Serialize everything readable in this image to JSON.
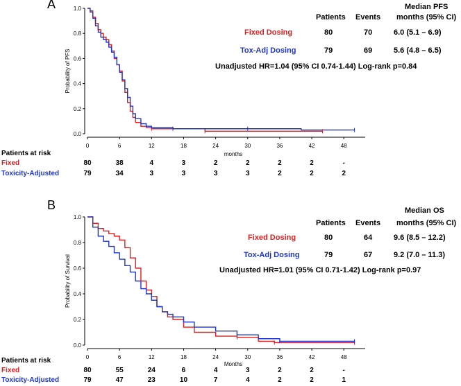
{
  "colors": {
    "fixed": "#e01e1e",
    "tox": "#1f35c8",
    "axis": "#000000"
  },
  "chart_data": [
    {
      "type": "line",
      "panel_label": "A",
      "ylabel": "Probability of PFS",
      "xlabel": "months",
      "xlim": [
        0,
        52
      ],
      "ylim": [
        0,
        1.0
      ],
      "xticks": [
        0,
        6,
        12,
        18,
        24,
        30,
        36,
        42,
        48
      ],
      "yticks": [
        "0.0",
        "0.2",
        "0.4",
        "0.6",
        "0.8",
        "1.0"
      ],
      "series": [
        {
          "name": "Fixed",
          "color": "#e01e1e",
          "x": [
            0,
            0.5,
            1,
            1.5,
            2,
            2.5,
            3,
            3.5,
            4,
            4.5,
            5,
            5.5,
            6,
            6.5,
            7,
            7.5,
            8,
            8.5,
            9,
            10,
            11,
            12,
            16,
            22,
            30,
            44
          ],
          "y": [
            1.0,
            0.98,
            0.93,
            0.88,
            0.83,
            0.8,
            0.77,
            0.75,
            0.71,
            0.66,
            0.6,
            0.55,
            0.5,
            0.42,
            0.33,
            0.25,
            0.18,
            0.13,
            0.09,
            0.06,
            0.05,
            0.04,
            0.04,
            0.02,
            0.02,
            0.02
          ]
        },
        {
          "name": "Toxicity-Adjusted",
          "color": "#1f35c8",
          "x": [
            0,
            0.5,
            1,
            1.5,
            2,
            2.5,
            3,
            3.5,
            4,
            4.5,
            5,
            5.5,
            6,
            6.5,
            7,
            7.5,
            8,
            8.5,
            9,
            10,
            11,
            12,
            16,
            22,
            30,
            40,
            50
          ],
          "y": [
            1.0,
            0.97,
            0.92,
            0.86,
            0.81,
            0.77,
            0.75,
            0.73,
            0.69,
            0.65,
            0.61,
            0.55,
            0.49,
            0.43,
            0.36,
            0.29,
            0.22,
            0.16,
            0.12,
            0.08,
            0.06,
            0.05,
            0.04,
            0.04,
            0.04,
            0.03,
            0.03
          ]
        }
      ]
    },
    {
      "type": "line",
      "panel_label": "B",
      "ylabel": "Probability of Survival",
      "xlabel": "Months",
      "xlim": [
        0,
        52
      ],
      "ylim": [
        0,
        1.0
      ],
      "xticks": [
        0,
        6,
        12,
        18,
        24,
        30,
        36,
        42,
        48
      ],
      "yticks": [
        "0.0",
        "0.2",
        "0.4",
        "0.6",
        "0.8",
        "1.0"
      ],
      "series": [
        {
          "name": "Fixed",
          "color": "#e01e1e",
          "x": [
            0,
            1,
            2,
            3,
            4,
            5,
            6,
            7,
            8,
            9,
            10,
            11,
            12,
            13,
            14,
            15,
            16,
            18,
            20,
            24,
            28,
            32,
            35,
            40,
            50
          ],
          "y": [
            1.0,
            0.95,
            0.91,
            0.89,
            0.87,
            0.85,
            0.82,
            0.76,
            0.68,
            0.6,
            0.5,
            0.43,
            0.38,
            0.3,
            0.26,
            0.22,
            0.2,
            0.14,
            0.1,
            0.07,
            0.06,
            0.03,
            0.02,
            0.02,
            0.02
          ]
        },
        {
          "name": "Toxicity-Adjusted",
          "color": "#1f35c8",
          "x": [
            0,
            1,
            2,
            3,
            4,
            5,
            6,
            7,
            8,
            9,
            10,
            11,
            12,
            13,
            14,
            15,
            16,
            18,
            20,
            24,
            28,
            32,
            36,
            44,
            50
          ],
          "y": [
            1.0,
            0.92,
            0.85,
            0.81,
            0.77,
            0.72,
            0.67,
            0.62,
            0.57,
            0.5,
            0.44,
            0.4,
            0.35,
            0.3,
            0.26,
            0.24,
            0.22,
            0.18,
            0.14,
            0.11,
            0.08,
            0.05,
            0.03,
            0.03,
            0.03
          ]
        }
      ]
    }
  ],
  "panel_a": {
    "letter": "A",
    "header_col1": "Patients",
    "header_col2": "Events",
    "header_col3_line1": "Median PFS",
    "header_col3_line2": "months (95% CI)",
    "row1": {
      "label": "Fixed Dosing",
      "patients": "80",
      "events": "70",
      "median": "6.0 (5.1 – 6.9)"
    },
    "row2": {
      "label": "Tox-Adj Dosing",
      "patients": "79",
      "events": "69",
      "median": "5.6 (4.8 – 6.5)"
    },
    "hr_text": "Unadjusted HR=1.04  (95% CI 0.74-1.44) Log-rank p=0.84",
    "risk_title": "Patients at risk",
    "risk_fixed_label": "Fixed",
    "risk_tox_label": "Toxicity-Adjusted",
    "risk_fixed": [
      "80",
      "38",
      "4",
      "3",
      "2",
      "2",
      "2",
      "2",
      "-"
    ],
    "risk_tox": [
      "79",
      "34",
      "3",
      "3",
      "3",
      "3",
      "2",
      "2",
      "2"
    ]
  },
  "panel_b": {
    "letter": "B",
    "header_col1": "Patients",
    "header_col2": "Events",
    "header_col3_line1": "Median OS",
    "header_col3_line2": "months (95% CI)",
    "row1": {
      "label": "Fixed Dosing",
      "patients": "80",
      "events": "64",
      "median": "9.6 (8.5 – 12.2)"
    },
    "row2": {
      "label": "Tox-Adj Dosing",
      "patients": "79",
      "events": "67",
      "median": "9.2 (7.0 – 11.3)"
    },
    "hr_text": "Unadjusted HR=1.01 (95% CI 0.71-1.42) Log-rank p=0.97",
    "risk_title": "Patients at risk",
    "risk_fixed_label": "Fixed",
    "risk_tox_label": "Toxicity-Adjusted",
    "risk_fixed": [
      "80",
      "55",
      "24",
      "6",
      "4",
      "3",
      "2",
      "2",
      "-"
    ],
    "risk_tox": [
      "79",
      "47",
      "23",
      "10",
      "7",
      "4",
      "2",
      "2",
      "1"
    ]
  }
}
